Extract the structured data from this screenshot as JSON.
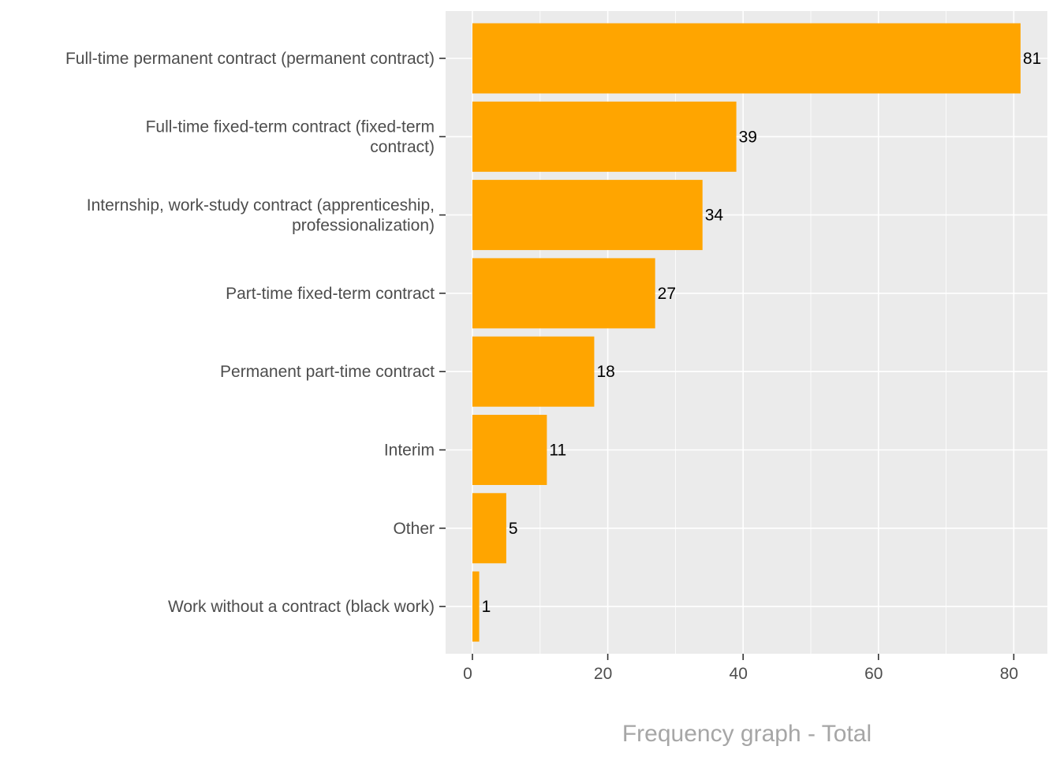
{
  "chart_data": {
    "type": "bar",
    "orientation": "horizontal",
    "categories": [
      [
        "Full-time permanent contract (permanent contract)"
      ],
      [
        "Full-time fixed-term contract (fixed-term",
        "contract)"
      ],
      [
        "Internship, work-study contract (apprenticeship,",
        "professionalization)"
      ],
      [
        "Part-time fixed-term contract"
      ],
      [
        "Permanent part-time contract"
      ],
      [
        "Interim"
      ],
      [
        "Other"
      ],
      [
        "Work without a contract (black work)"
      ]
    ],
    "values": [
      81,
      39,
      34,
      27,
      18,
      11,
      5,
      1
    ],
    "data_labels": [
      "81",
      "39",
      "34",
      "27",
      "18",
      "11",
      "5",
      "1"
    ],
    "title": "Frequency graph - Total",
    "xlabel": "",
    "ylabel": "",
    "xlim": [
      -3.9,
      85
    ],
    "xticks": [
      0,
      20,
      40,
      60,
      80
    ],
    "xtick_labels": [
      "0",
      "20",
      "40",
      "60",
      "80"
    ],
    "grid": true,
    "bar_color": "#FFA500",
    "panel_color": "#EBEBEB"
  }
}
